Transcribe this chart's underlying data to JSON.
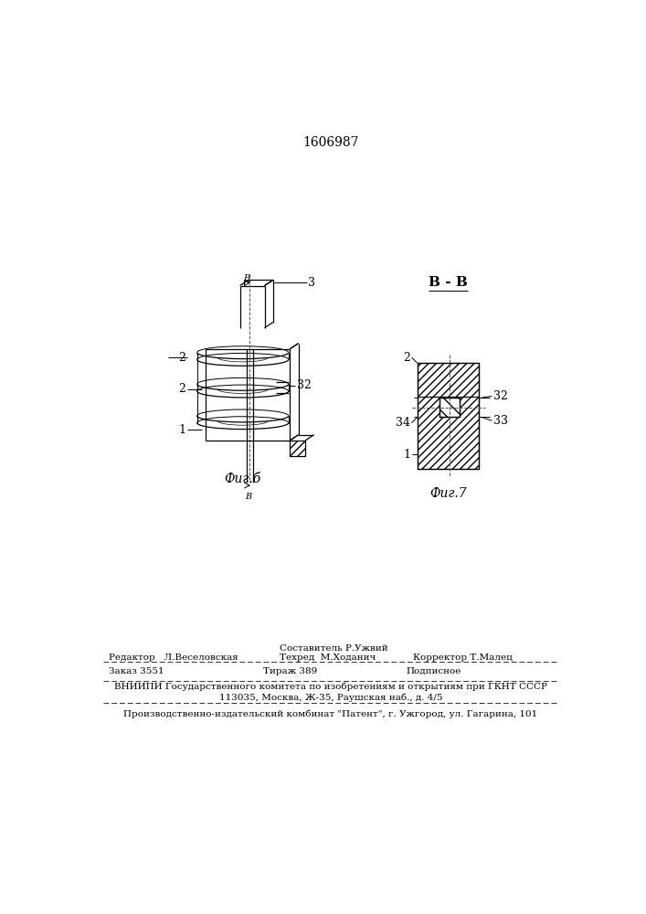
{
  "patent_number": "1606987",
  "fig6_label": "Фиг.б",
  "fig7_label": "Фиг.7",
  "section_label": "В - В",
  "editor_line": "Редактор   Л.Веселовская",
  "composer_line": "Составитель Р.Ужвий",
  "techred_line": "Техред  М.Ходанич",
  "corrector_line": "Корректор Т.Малец",
  "order_line": "Заказ 3551",
  "tirazh_line": "Тираж 389",
  "podpisnoe_line": "Подписное",
  "vniiipi_line1": "ВНИИПИ Государственного комитета по изобретениям и открытиям при ГКНТ СССР",
  "vniiipi_line2": "113035, Москва, Ж-35, Раушская наб., д. 4/5",
  "factory_line": "Производственно-издательский комбинат \"Патент\", г. Ужгород, ул. Гагарина, 101",
  "bg_color": "#ffffff",
  "line_color": "#000000"
}
